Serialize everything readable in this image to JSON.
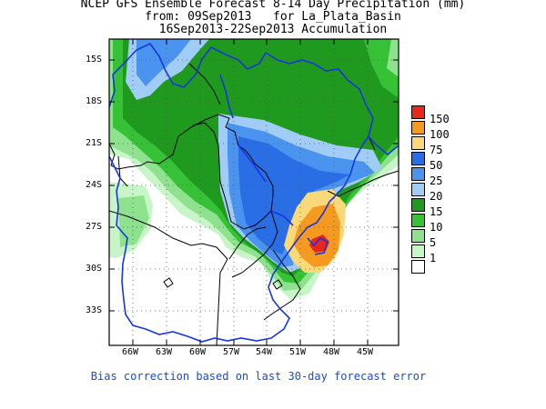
{
  "title": {
    "line1": "NCEP GFS Ensemble Forecast 8-14 Day Precipitation (mm)",
    "line2": "from: 09Sep2013   for La_Plata_Basin",
    "line3": "16Sep2013-22Sep2013 Accumulation"
  },
  "lat_labels": [
    "15S",
    "18S",
    "21S",
    "24S",
    "27S",
    "30S",
    "33S"
  ],
  "lon_labels": [
    "66W",
    "63W",
    "60W",
    "57W",
    "54W",
    "51W",
    "48W",
    "45W"
  ],
  "legend": [
    {
      "value": "150",
      "color": "#e8261a"
    },
    {
      "value": "100",
      "color": "#f59a20"
    },
    {
      "value": "75",
      "color": "#fbd878"
    },
    {
      "value": "50",
      "color": "#2a6ee6"
    },
    {
      "value": "25",
      "color": "#4a94f0"
    },
    {
      "value": "20",
      "color": "#a0ccf5"
    },
    {
      "value": "15",
      "color": "#1f9a1f"
    },
    {
      "value": "10",
      "color": "#36c136"
    },
    {
      "value": "5",
      "color": "#8ee28e"
    },
    {
      "value": "1",
      "color": "#c8f5c8"
    },
    {
      "value": "",
      "color": "#ffffff"
    }
  ],
  "colors": {
    "basin_outline": "#1836e0",
    "border": "#000000",
    "grid": "#555555"
  },
  "footer": "Bias correction based on last 30-day forecast error"
}
